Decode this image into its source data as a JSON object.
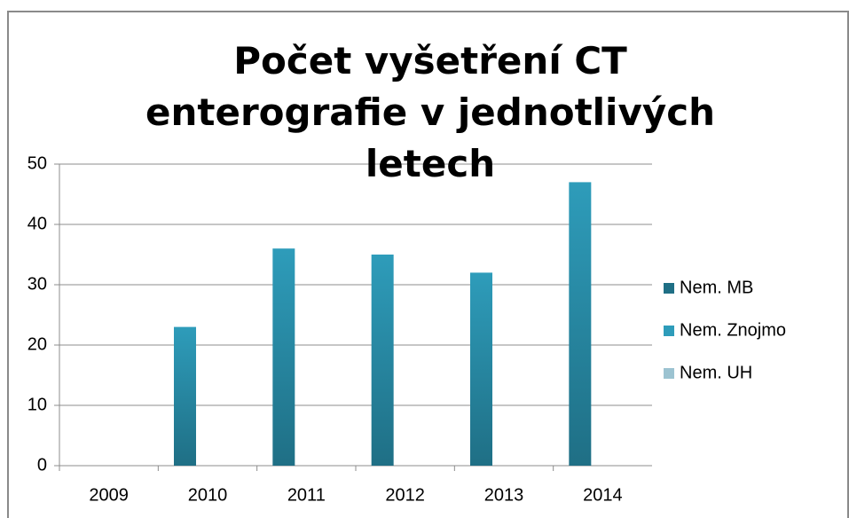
{
  "chart_data": {
    "type": "bar",
    "title": "Počet vyšetření CT enterografie v jednotlivých letech",
    "categories": [
      "2009",
      "2010",
      "2011",
      "2012",
      "2013",
      "2014"
    ],
    "series": [
      {
        "name": "Nem. MB",
        "color": "#1f6f85",
        "values": [
          0,
          0,
          0,
          0,
          0,
          0
        ]
      },
      {
        "name": "Nem. Znojmo",
        "color": "#2e9cba",
        "values": [
          0,
          23,
          36,
          35,
          32,
          47
        ]
      },
      {
        "name": "Nem. UH",
        "color": "#9cc3d1",
        "values": [
          0,
          0,
          0,
          0,
          0,
          0
        ]
      }
    ],
    "ylim": [
      0,
      50
    ],
    "yticks": [
      0,
      10,
      20,
      30,
      40,
      50
    ],
    "grid": true,
    "legend": "right"
  }
}
